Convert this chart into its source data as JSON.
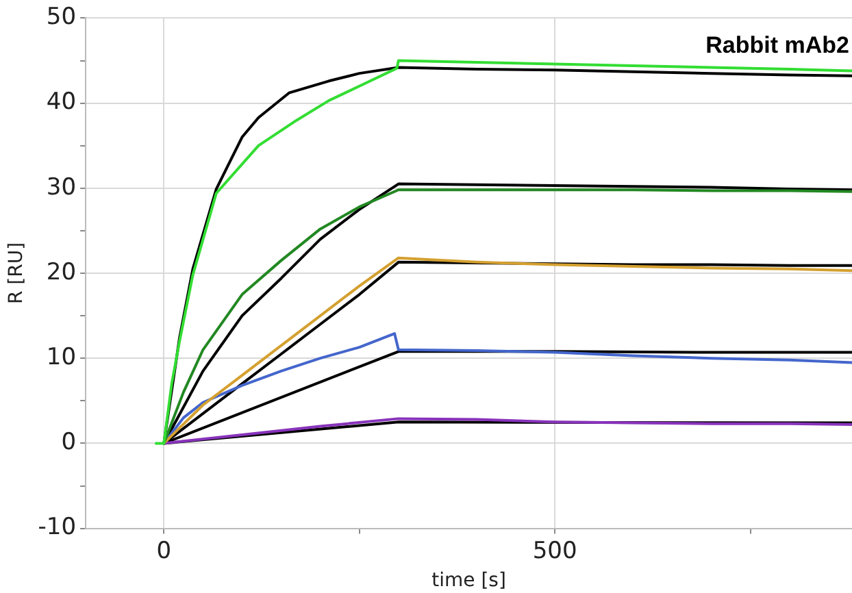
{
  "chart_data": {
    "type": "line",
    "xlabel": "time [s]",
    "ylabel": "R [RU]",
    "annotations": [
      "Rabbit mAb2"
    ],
    "xlim": [
      -100,
      880
    ],
    "xticks": [
      0,
      {
        "value": 250,
        "label": null
      },
      500,
      {
        "value": 750,
        "label": null
      }
    ],
    "ylim": [
      -10,
      50
    ],
    "yticks": [
      -10,
      {
        "value": -5,
        "label": null
      },
      0,
      {
        "value": 5,
        "label": null
      },
      10,
      {
        "value": 15,
        "label": null
      },
      20,
      {
        "value": 25,
        "label": null
      },
      30,
      {
        "value": 35,
        "label": null
      },
      40,
      {
        "value": 45,
        "label": null
      },
      50
    ],
    "grid": true,
    "legend": false,
    "marker": "none",
    "line_style": "solid",
    "series": [
      {
        "color": "#33dd33",
        "x": [
          -10,
          0,
          10,
          20,
          37,
          67,
          121,
          170,
          211,
          250,
          298,
          300,
          400,
          500,
          600,
          700,
          800,
          880
        ],
        "values": [
          0,
          0,
          7,
          12,
          19.8,
          29.4,
          35,
          38,
          40.3,
          42,
          44.1,
          45,
          44.8,
          44.6,
          44.4,
          44.2,
          44,
          43.8
        ]
      },
      {
        "color": "#228822",
        "x": [
          0,
          25,
          50,
          100,
          150,
          200,
          250,
          300,
          400,
          500,
          600,
          700,
          800,
          880
        ],
        "values": [
          0,
          6,
          11,
          17.5,
          21.5,
          25.2,
          27.8,
          29.8,
          29.8,
          29.8,
          29.8,
          29.7,
          29.7,
          29.6
        ]
      },
      {
        "color": "#d4a030",
        "x": [
          0,
          50,
          100,
          150,
          200,
          250,
          300,
          400,
          500,
          600,
          700,
          800,
          880
        ],
        "values": [
          0,
          4.5,
          8,
          11.5,
          15,
          18.5,
          21.8,
          21.3,
          21,
          20.8,
          20.6,
          20.5,
          20.3
        ]
      },
      {
        "color": "#4466cc",
        "x": [
          0,
          25,
          50,
          100,
          150,
          200,
          250,
          295,
          300,
          400,
          500,
          600,
          700,
          800,
          880
        ],
        "values": [
          0,
          3,
          4.8,
          6.8,
          8.5,
          10,
          11.3,
          12.9,
          11,
          10.9,
          10.7,
          10.3,
          10,
          9.8,
          9.5
        ]
      },
      {
        "color": "#8833bb",
        "x": [
          0,
          100,
          200,
          300,
          400,
          500,
          600,
          700,
          800,
          880
        ],
        "values": [
          0,
          1,
          2,
          2.9,
          2.8,
          2.5,
          2.4,
          2.3,
          2.3,
          2.2
        ]
      },
      {
        "color": "#000000",
        "x": [
          0,
          20,
          37,
          67,
          100,
          121,
          160,
          211,
          250,
          300,
          400,
          500,
          600,
          700,
          800,
          880
        ],
        "values": [
          0,
          12.4,
          20.5,
          29.9,
          36,
          38.3,
          41.2,
          42.6,
          43.5,
          44.2,
          44,
          43.9,
          43.7,
          43.5,
          43.3,
          43.2
        ]
      },
      {
        "color": "#000000",
        "x": [
          0,
          50,
          100,
          150,
          200,
          250,
          300,
          400,
          500,
          600,
          700,
          800,
          880
        ],
        "values": [
          0,
          8.5,
          15,
          19.4,
          24,
          27.5,
          30.5,
          30.4,
          30.3,
          30.2,
          30.1,
          29.9,
          29.8
        ]
      },
      {
        "color": "#000000",
        "x": [
          0,
          100,
          150,
          200,
          250,
          300,
          400,
          500,
          600,
          700,
          800,
          880
        ],
        "values": [
          0,
          7,
          10.5,
          14,
          17.5,
          21.3,
          21.2,
          21.1,
          21,
          21,
          20.9,
          20.9
        ]
      },
      {
        "color": "#000000",
        "x": [
          0,
          300,
          500,
          700,
          880
        ],
        "values": [
          0,
          10.8,
          10.8,
          10.7,
          10.7
        ]
      },
      {
        "color": "#000000",
        "x": [
          0,
          300,
          880
        ],
        "values": [
          0,
          2.5,
          2.4
        ]
      }
    ]
  }
}
